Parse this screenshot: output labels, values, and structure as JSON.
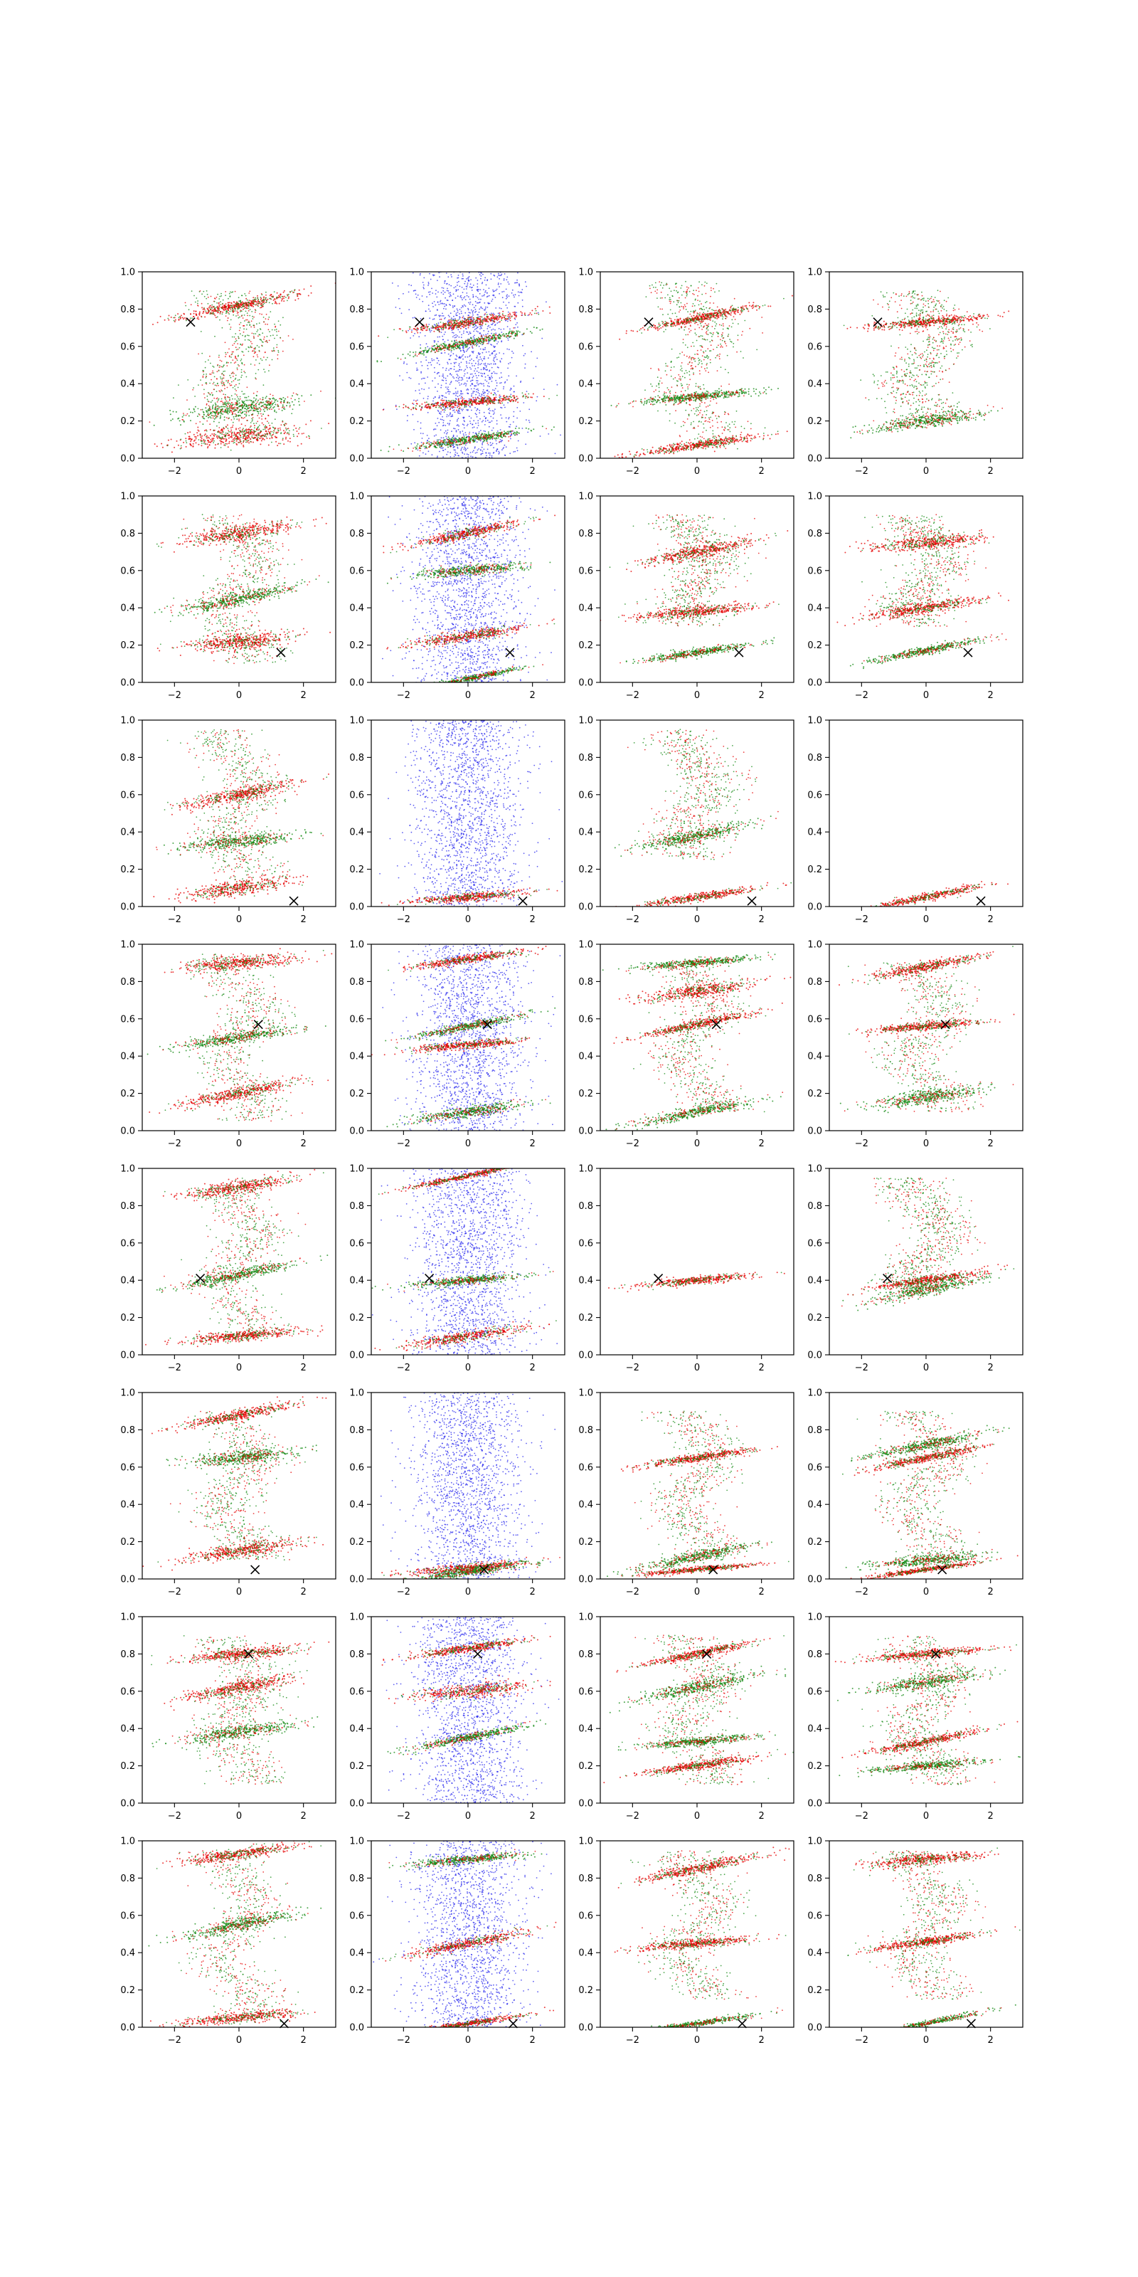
{
  "figure": {
    "layout": {
      "rows": 8,
      "cols": 4
    },
    "colors": {
      "red": "#e60000",
      "green": "#118811",
      "blue": "#2a2aee",
      "marker": "#000000"
    },
    "axes": {
      "xlim": [
        -3,
        3
      ],
      "ylim": [
        0,
        1
      ],
      "xticks": [
        -2,
        0,
        2
      ],
      "xtick_labels": [
        "−2",
        "0",
        "2"
      ],
      "yticks": [
        0,
        0.2,
        0.4,
        0.6,
        0.8,
        1
      ],
      "ytick_labels": [
        "0.0",
        "0.2",
        "0.4",
        "0.6",
        "0.8",
        "1.0"
      ]
    }
  },
  "chart_data": [
    {
      "row": 1,
      "type": "scatter",
      "marker": [
        -1.5,
        0.73
      ],
      "bands": [
        [
          0.12,
          0.08
        ],
        [
          0.27,
          0.07
        ],
        [
          0.82,
          0.04
        ]
      ],
      "noise": [
        [
          0.5,
          0.4
        ]
      ],
      "blue": 0
    },
    {
      "row": 1,
      "type": "scatter",
      "marker": [
        -1.5,
        0.73
      ],
      "bands": [
        [
          0.73,
          0.035
        ],
        [
          0.62,
          0.03
        ],
        [
          0.3,
          0.03
        ],
        [
          0.1,
          0.03
        ]
      ],
      "noise": [],
      "blue": 1
    },
    {
      "row": 1,
      "type": "scatter",
      "marker": [
        -1.5,
        0.73
      ],
      "bands": [
        [
          0.75,
          0.03
        ],
        [
          0.33,
          0.03
        ],
        [
          0.07,
          0.03
        ]
      ],
      "noise": [
        [
          0.5,
          0.45
        ]
      ],
      "blue": 0
    },
    {
      "row": 1,
      "type": "scatter",
      "marker": [
        -1.5,
        0.73
      ],
      "bands": [
        [
          0.73,
          0.03
        ],
        [
          0.2,
          0.05
        ]
      ],
      "noise": [
        [
          0.55,
          0.35
        ]
      ],
      "blue": 0
    },
    {
      "row": 2,
      "type": "scatter",
      "marker": [
        1.3,
        0.16
      ],
      "bands": [
        [
          0.8,
          0.06
        ],
        [
          0.45,
          0.05
        ],
        [
          0.22,
          0.06
        ]
      ],
      "noise": [
        [
          0.5,
          0.4
        ]
      ],
      "blue": 0
    },
    {
      "row": 2,
      "type": "scatter",
      "marker": [
        1.3,
        0.16
      ],
      "bands": [
        [
          0.8,
          0.04
        ],
        [
          0.6,
          0.04
        ],
        [
          0.25,
          0.04
        ],
        [
          0.02,
          0.02
        ]
      ],
      "noise": [],
      "blue": 1
    },
    {
      "row": 2,
      "type": "scatter",
      "marker": [
        1.3,
        0.16
      ],
      "bands": [
        [
          0.38,
          0.04
        ],
        [
          0.16,
          0.03
        ],
        [
          0.7,
          0.05
        ]
      ],
      "noise": [
        [
          0.6,
          0.3
        ]
      ],
      "blue": 0
    },
    {
      "row": 2,
      "type": "scatter",
      "marker": [
        1.3,
        0.16
      ],
      "bands": [
        [
          0.4,
          0.04
        ],
        [
          0.17,
          0.03
        ],
        [
          0.75,
          0.05
        ]
      ],
      "noise": [
        [
          0.6,
          0.3
        ]
      ],
      "blue": 0
    },
    {
      "row": 3,
      "type": "scatter",
      "marker": [
        1.7,
        0.03
      ],
      "bands": [
        [
          0.6,
          0.05
        ],
        [
          0.35,
          0.05
        ],
        [
          0.1,
          0.06
        ]
      ],
      "noise": [
        [
          0.55,
          0.4
        ]
      ],
      "blue": 0
    },
    {
      "row": 3,
      "type": "scatter",
      "marker": [
        1.7,
        0.03
      ],
      "bands": [
        [
          0.05,
          0.03
        ]
      ],
      "noise": [],
      "blue": 1
    },
    {
      "row": 3,
      "type": "scatter",
      "marker": [
        1.7,
        0.03
      ],
      "bands": [
        [
          0.05,
          0.03
        ],
        [
          0.38,
          0.05
        ]
      ],
      "noise": [
        [
          0.6,
          0.35
        ]
      ],
      "blue": 0
    },
    {
      "row": 3,
      "type": "scatter",
      "marker": [
        1.7,
        0.03
      ],
      "bands": [
        [
          0.05,
          0.03
        ]
      ],
      "noise": [],
      "blue": 0
    },
    {
      "row": 4,
      "type": "scatter",
      "marker": [
        0.6,
        0.57
      ],
      "bands": [
        [
          0.9,
          0.05
        ],
        [
          0.5,
          0.04
        ],
        [
          0.2,
          0.05
        ]
      ],
      "noise": [
        [
          0.5,
          0.45
        ]
      ],
      "blue": 0
    },
    {
      "row": 4,
      "type": "scatter",
      "marker": [
        0.6,
        0.57
      ],
      "bands": [
        [
          0.92,
          0.03
        ],
        [
          0.56,
          0.03
        ],
        [
          0.46,
          0.03
        ],
        [
          0.1,
          0.04
        ]
      ],
      "noise": [],
      "blue": 1
    },
    {
      "row": 4,
      "type": "scatter",
      "marker": [
        0.6,
        0.57
      ],
      "bands": [
        [
          0.57,
          0.03
        ],
        [
          0.9,
          0.03
        ],
        [
          0.75,
          0.05
        ],
        [
          0.1,
          0.04
        ]
      ],
      "noise": [
        [
          0.5,
          0.4
        ]
      ],
      "blue": 0
    },
    {
      "row": 4,
      "type": "scatter",
      "marker": [
        0.6,
        0.57
      ],
      "bands": [
        [
          0.56,
          0.03
        ],
        [
          0.18,
          0.05
        ],
        [
          0.88,
          0.04
        ]
      ],
      "noise": [
        [
          0.5,
          0.4
        ]
      ],
      "blue": 0
    },
    {
      "row": 5,
      "type": "scatter",
      "marker": [
        -1.2,
        0.41
      ],
      "bands": [
        [
          0.9,
          0.05
        ],
        [
          0.43,
          0.04
        ],
        [
          0.1,
          0.04
        ]
      ],
      "noise": [
        [
          0.5,
          0.4
        ]
      ],
      "blue": 0
    },
    {
      "row": 5,
      "type": "scatter",
      "marker": [
        -1.2,
        0.41
      ],
      "bands": [
        [
          0.96,
          0.02
        ],
        [
          0.4,
          0.03
        ],
        [
          0.1,
          0.04
        ]
      ],
      "noise": [],
      "blue": 1
    },
    {
      "row": 5,
      "type": "scatter",
      "marker": [
        -1.2,
        0.41
      ],
      "bands": [
        [
          0.4,
          0.03
        ]
      ],
      "noise": [],
      "blue": 0
    },
    {
      "row": 5,
      "type": "scatter",
      "marker": [
        -1.2,
        0.41
      ],
      "bands": [
        [
          0.4,
          0.03
        ],
        [
          0.35,
          0.05
        ]
      ],
      "noise": [
        [
          0.65,
          0.3
        ]
      ],
      "blue": 0
    },
    {
      "row": 6,
      "type": "scatter",
      "marker": [
        0.5,
        0.05
      ],
      "bands": [
        [
          0.88,
          0.04
        ],
        [
          0.65,
          0.05
        ],
        [
          0.15,
          0.05
        ]
      ],
      "noise": [
        [
          0.5,
          0.4
        ]
      ],
      "blue": 0
    },
    {
      "row": 6,
      "type": "scatter",
      "marker": [
        0.5,
        0.05
      ],
      "bands": [
        [
          0.06,
          0.03
        ],
        [
          0.04,
          0.03
        ]
      ],
      "noise": [],
      "blue": 1
    },
    {
      "row": 6,
      "type": "scatter",
      "marker": [
        0.5,
        0.05
      ],
      "bands": [
        [
          0.65,
          0.03
        ],
        [
          0.12,
          0.04
        ],
        [
          0.05,
          0.02
        ]
      ],
      "noise": [
        [
          0.5,
          0.4
        ]
      ],
      "blue": 0
    },
    {
      "row": 6,
      "type": "scatter",
      "marker": [
        0.5,
        0.05
      ],
      "bands": [
        [
          0.65,
          0.03
        ],
        [
          0.1,
          0.04
        ],
        [
          0.05,
          0.02
        ],
        [
          0.72,
          0.04
        ]
      ],
      "noise": [
        [
          0.5,
          0.4
        ]
      ],
      "blue": 0
    },
    {
      "row": 7,
      "type": "scatter",
      "marker": [
        0.3,
        0.8
      ],
      "bands": [
        [
          0.8,
          0.04
        ],
        [
          0.38,
          0.05
        ],
        [
          0.62,
          0.05
        ]
      ],
      "noise": [
        [
          0.5,
          0.4
        ]
      ],
      "blue": 0
    },
    {
      "row": 7,
      "type": "scatter",
      "marker": [
        0.3,
        0.8
      ],
      "bands": [
        [
          0.83,
          0.03
        ],
        [
          0.35,
          0.03
        ],
        [
          0.6,
          0.05
        ]
      ],
      "noise": [],
      "blue": 1
    },
    {
      "row": 7,
      "type": "scatter",
      "marker": [
        0.3,
        0.8
      ],
      "bands": [
        [
          0.8,
          0.03
        ],
        [
          0.33,
          0.03
        ],
        [
          0.2,
          0.03
        ],
        [
          0.62,
          0.05
        ]
      ],
      "noise": [
        [
          0.5,
          0.4
        ]
      ],
      "blue": 0
    },
    {
      "row": 7,
      "type": "scatter",
      "marker": [
        0.3,
        0.8
      ],
      "bands": [
        [
          0.8,
          0.03
        ],
        [
          0.65,
          0.05
        ],
        [
          0.33,
          0.03
        ],
        [
          0.2,
          0.03
        ]
      ],
      "noise": [
        [
          0.5,
          0.4
        ]
      ],
      "blue": 0
    },
    {
      "row": 8,
      "type": "scatter",
      "marker": [
        1.4,
        0.02
      ],
      "bands": [
        [
          0.93,
          0.04
        ],
        [
          0.55,
          0.05
        ],
        [
          0.05,
          0.04
        ]
      ],
      "noise": [
        [
          0.5,
          0.45
        ]
      ],
      "blue": 0
    },
    {
      "row": 8,
      "type": "scatter",
      "marker": [
        1.4,
        0.02
      ],
      "bands": [
        [
          0.45,
          0.04
        ],
        [
          0.9,
          0.03
        ],
        [
          0.02,
          0.02
        ]
      ],
      "noise": [],
      "blue": 1
    },
    {
      "row": 8,
      "type": "scatter",
      "marker": [
        1.4,
        0.02
      ],
      "bands": [
        [
          0.45,
          0.03
        ],
        [
          0.02,
          0.02
        ],
        [
          0.85,
          0.04
        ]
      ],
      "noise": [
        [
          0.55,
          0.4
        ]
      ],
      "blue": 0
    },
    {
      "row": 8,
      "type": "scatter",
      "marker": [
        1.4,
        0.02
      ],
      "bands": [
        [
          0.46,
          0.03
        ],
        [
          0.02,
          0.02
        ],
        [
          0.9,
          0.04
        ]
      ],
      "noise": [
        [
          0.55,
          0.4
        ]
      ],
      "blue": 0
    }
  ]
}
